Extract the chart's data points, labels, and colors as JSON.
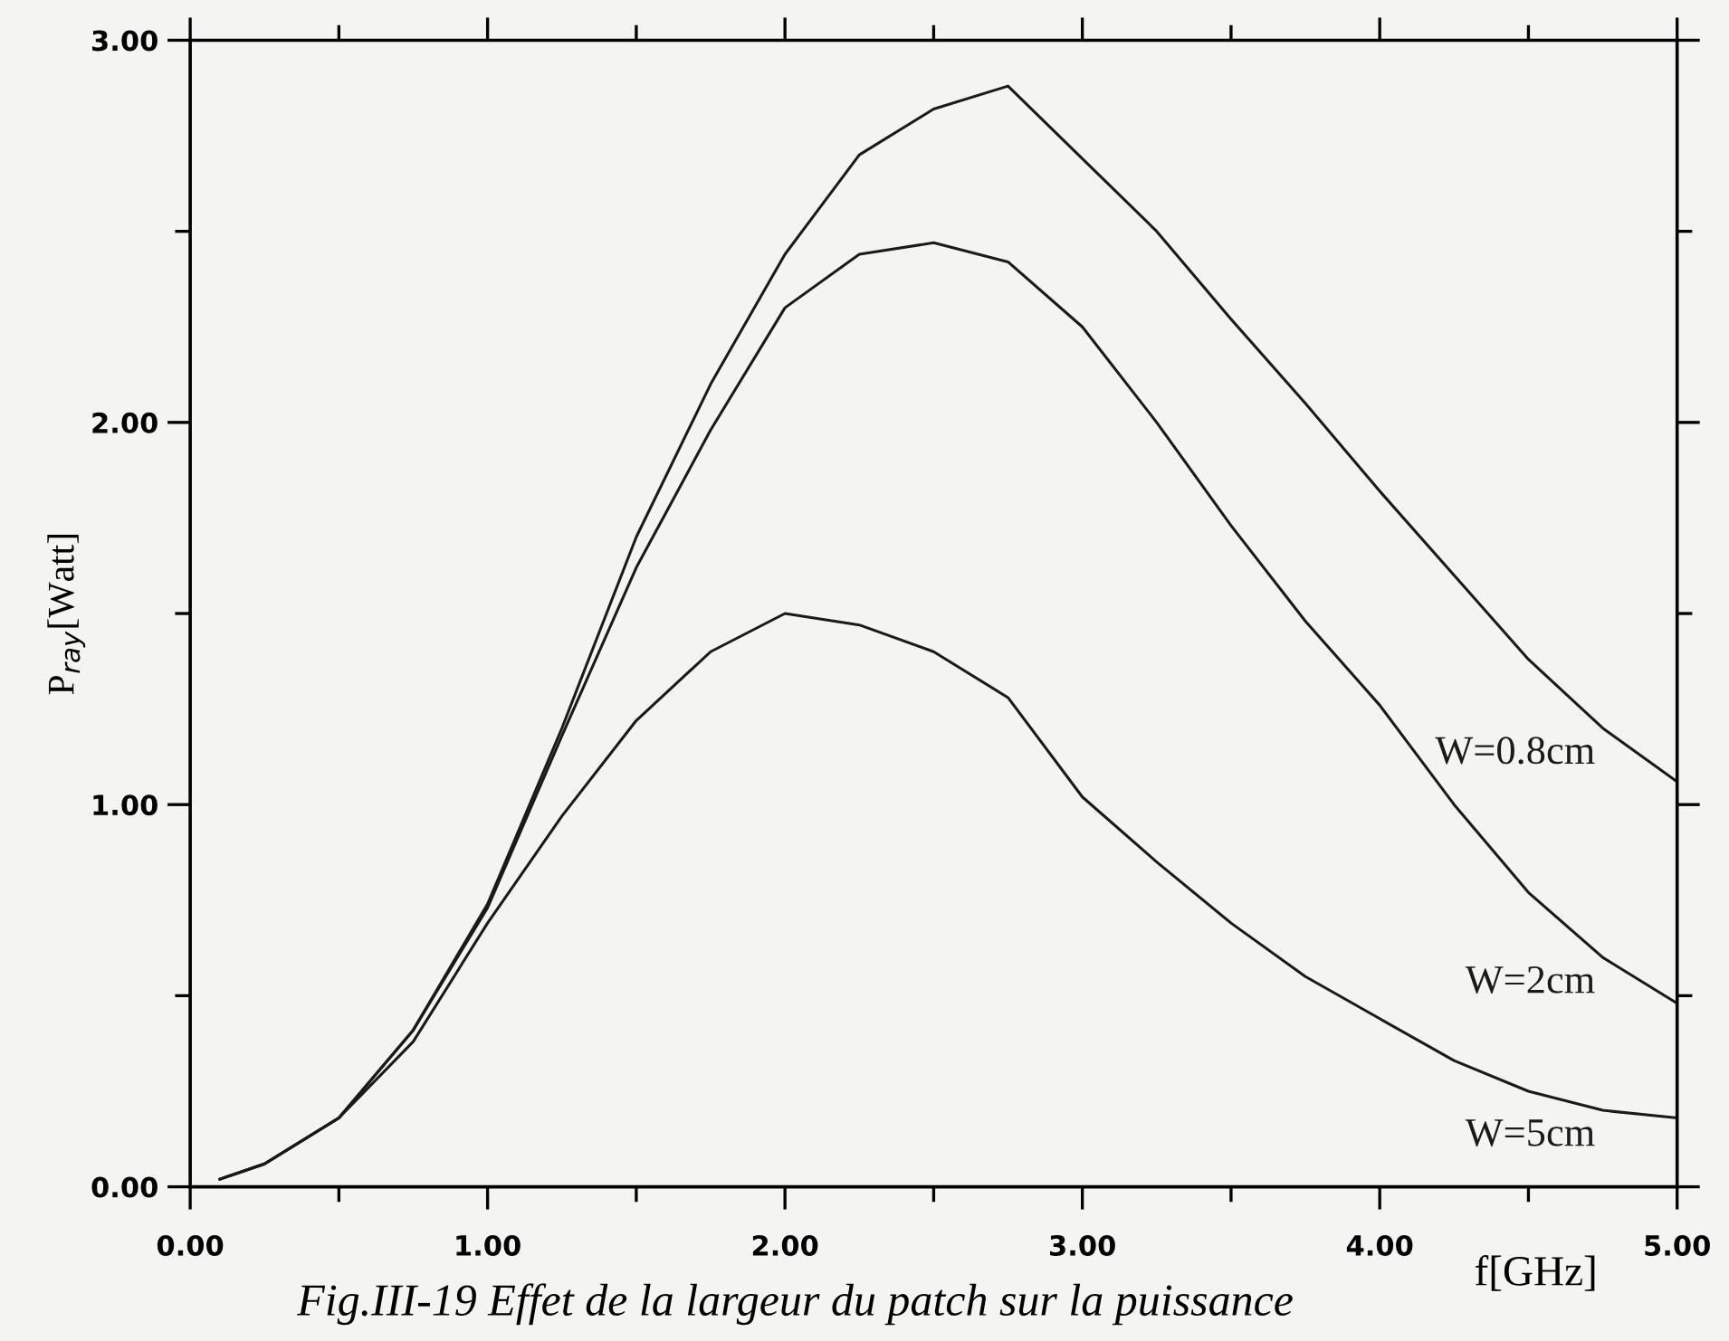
{
  "chart_data": {
    "type": "line",
    "xlabel": "f[GHz]",
    "ylabel": "P$_{ray}$[Watt]",
    "x": [
      0.1,
      0.25,
      0.5,
      0.75,
      1.0,
      1.25,
      1.5,
      1.75,
      2.0,
      2.25,
      2.5,
      2.75,
      3.0,
      3.25,
      3.5,
      3.75,
      4.0,
      4.25,
      4.5,
      4.75,
      5.0
    ],
    "series": [
      {
        "name": "W=0.8cm",
        "color": "#1a1a1a",
        "values": [
          0.02,
          0.06,
          0.18,
          0.41,
          0.74,
          1.2,
          1.7,
          2.1,
          2.44,
          2.7,
          2.82,
          2.88,
          2.69,
          2.5,
          2.27,
          2.05,
          1.82,
          1.6,
          1.38,
          1.2,
          1.06
        ]
      },
      {
        "name": "W=2cm",
        "color": "#1a1a1a",
        "values": [
          0.02,
          0.06,
          0.18,
          0.41,
          0.73,
          1.18,
          1.62,
          1.98,
          2.3,
          2.44,
          2.47,
          2.42,
          2.25,
          2.0,
          1.73,
          1.48,
          1.26,
          1.0,
          0.77,
          0.6,
          0.48
        ]
      },
      {
        "name": "W=5cm",
        "color": "#1a1a1a",
        "values": [
          0.02,
          0.06,
          0.18,
          0.38,
          0.69,
          0.97,
          1.22,
          1.4,
          1.5,
          1.47,
          1.4,
          1.28,
          1.02,
          0.85,
          0.69,
          0.55,
          0.44,
          0.33,
          0.25,
          0.2,
          0.18
        ]
      }
    ],
    "xlim": [
      0,
      5
    ],
    "ylim": [
      0,
      3
    ],
    "xticks": [
      {
        "value": 0,
        "label": "0.00"
      },
      {
        "value": 0.5,
        "label": null
      },
      {
        "value": 1,
        "label": "1.00"
      },
      {
        "value": 1.5,
        "label": null
      },
      {
        "value": 2,
        "label": "2.00"
      },
      {
        "value": 2.5,
        "label": null
      },
      {
        "value": 3,
        "label": "3.00"
      },
      {
        "value": 3.5,
        "label": null
      },
      {
        "value": 4,
        "label": "4.00"
      },
      {
        "value": 4.5,
        "label": null
      },
      {
        "value": 5,
        "label": "5.00"
      }
    ],
    "yticks": [
      {
        "value": 0,
        "label": "0.00"
      },
      {
        "value": 0.5,
        "label": null
      },
      {
        "value": 1,
        "label": "1.00"
      },
      {
        "value": 1.5,
        "label": null
      },
      {
        "value": 2,
        "label": "2.00"
      },
      {
        "value": 2.5,
        "label": null
      },
      {
        "value": 3,
        "label": "3.00"
      }
    ],
    "annotations": [
      "Fig.III-19 Effet de la largeur du patch sur la puissance"
    ],
    "grid": false,
    "legend": false,
    "marker": "none",
    "line_style": "solid"
  }
}
